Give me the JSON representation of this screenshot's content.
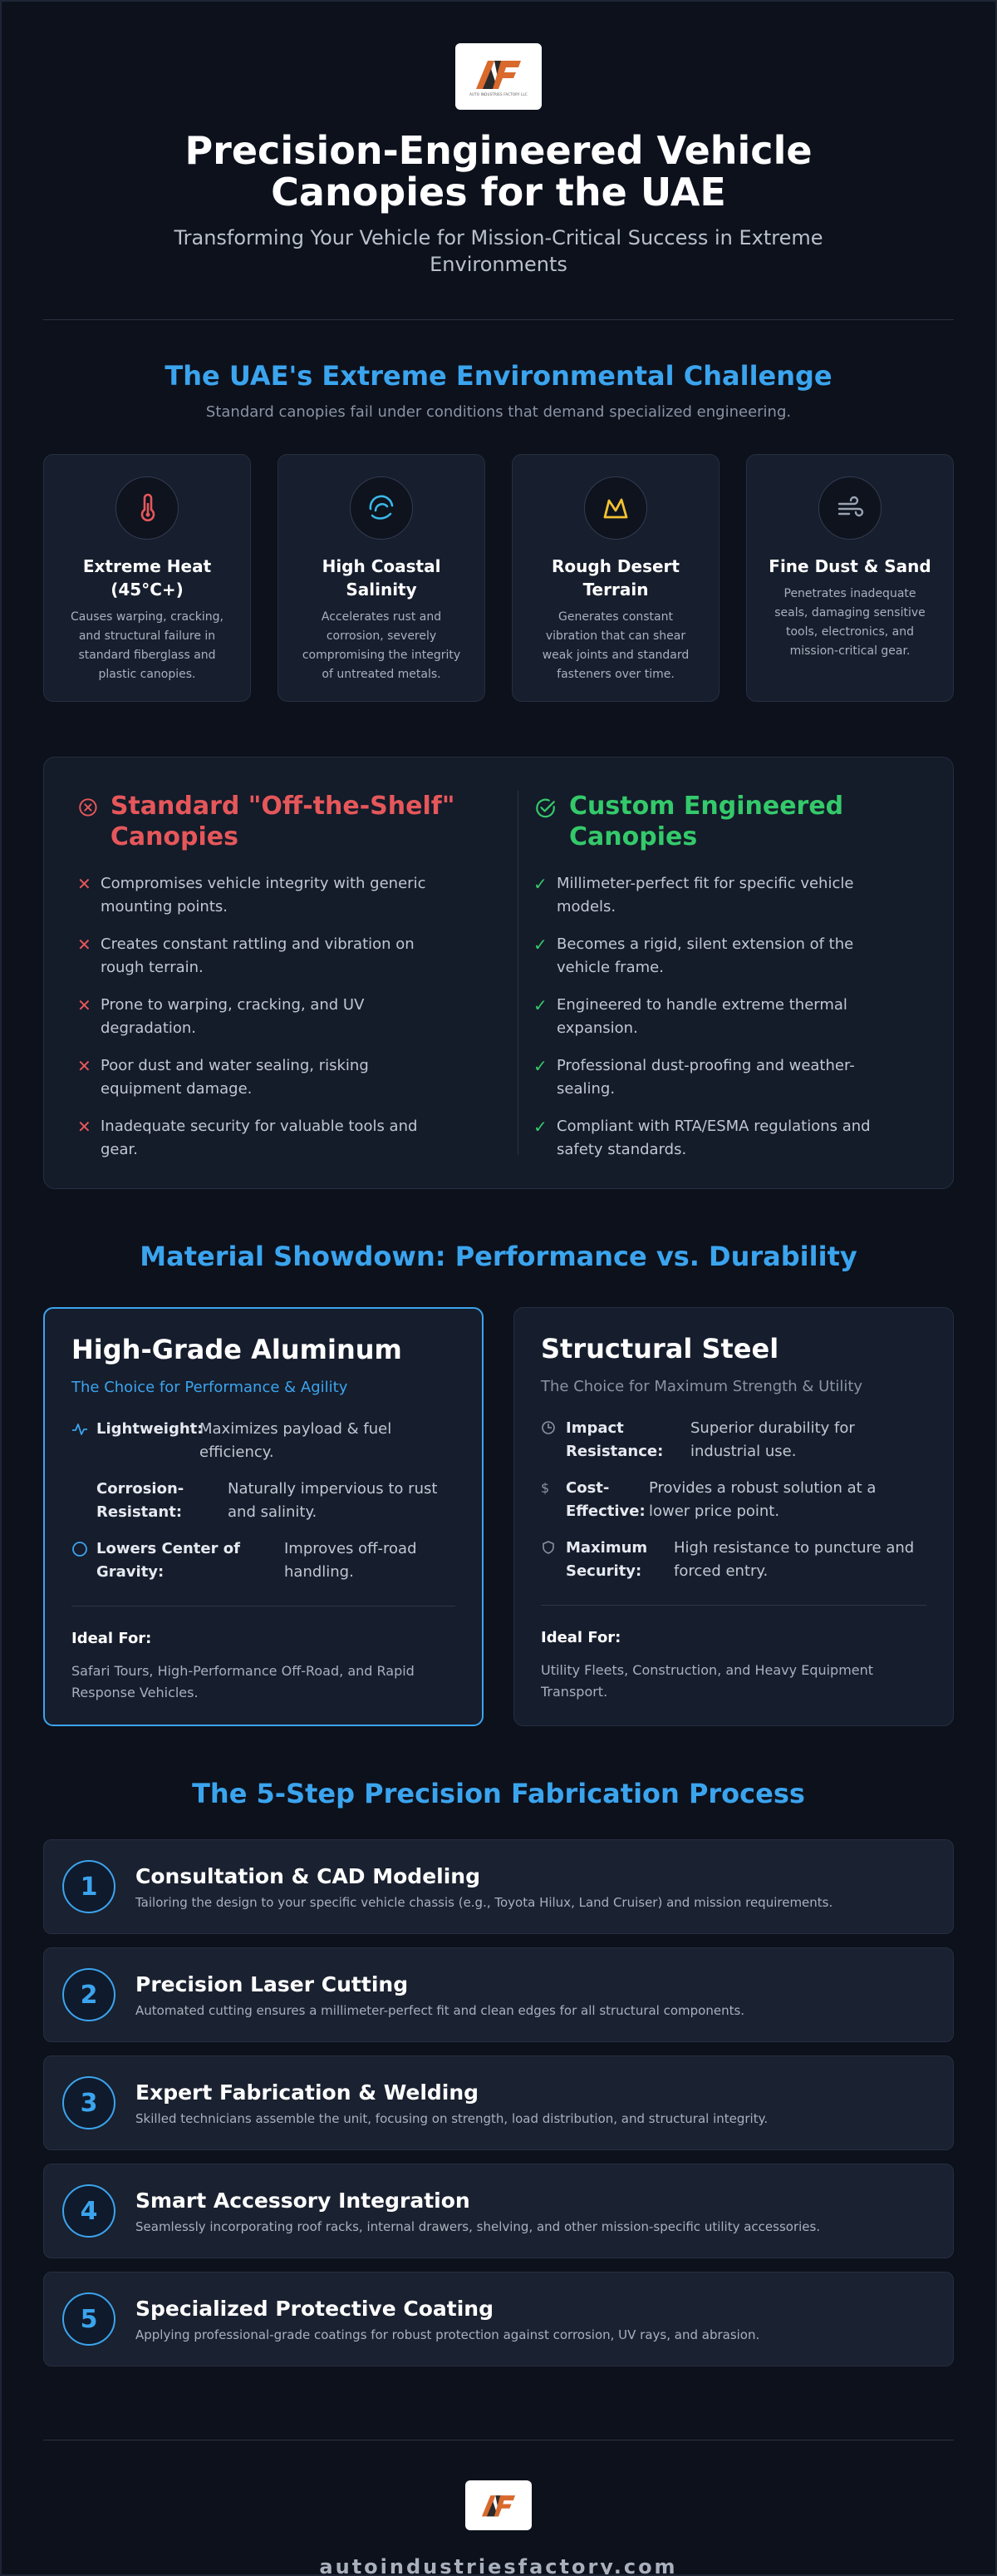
{
  "header": {
    "logo_text": "AUTO INDUSTRIES FACTORY LLC",
    "title": "Precision-Engineered Vehicle Canopies for the UAE",
    "subtitle": "Transforming Your Vehicle for Mission-Critical Success in Extreme Environments"
  },
  "challenge": {
    "title": "The UAE's Extreme Environmental Challenge",
    "subtitle": "Standard canopies fail under conditions that demand specialized engineering.",
    "cards": [
      {
        "icon": "thermometer-icon",
        "title": "Extreme Heat (45°C+)",
        "desc": "Causes warping, cracking, and structural failure in standard fiberglass and plastic canopies.",
        "color": "#e5575a"
      },
      {
        "icon": "wave-icon",
        "title": "High Coastal Salinity",
        "desc": "Accelerates rust and corrosion, severely compromising the integrity of untreated metals.",
        "color": "#3bb8e8"
      },
      {
        "icon": "mountain-icon",
        "title": "Rough Desert Terrain",
        "desc": "Generates constant vibration that can shear weak joints and standard fasteners over time.",
        "color": "#f2c230"
      },
      {
        "icon": "wind-icon",
        "title": "Fine Dust & Sand",
        "desc": "Penetrates inadequate seals, damaging sensitive tools, electronics, and mission-critical gear.",
        "color": "#9aa3b2"
      }
    ]
  },
  "compare": {
    "standard": {
      "title": "Standard \"Off-the-Shelf\" Canopies",
      "items": [
        "Compromises vehicle integrity with generic mounting points.",
        "Creates constant rattling and vibration on rough terrain.",
        "Prone to warping, cracking, and UV degradation.",
        "Poor dust and water sealing, risking equipment damage.",
        "Inadequate security for valuable tools and gear."
      ]
    },
    "custom": {
      "title": "Custom Engineered Canopies",
      "items": [
        "Millimeter-perfect fit for specific vehicle models.",
        "Becomes a rigid, silent extension of the vehicle frame.",
        "Engineered to handle extreme thermal expansion.",
        "Professional dust-proofing and weather-sealing.",
        "Compliant with RTA/ESMA regulations and safety standards."
      ]
    }
  },
  "materials": {
    "title": "Material Showdown: Performance vs. Durability",
    "aluminum": {
      "title": "High-Grade Aluminum",
      "subtitle": "The Choice for Performance & Agility",
      "features": [
        {
          "icon": "pulse-icon",
          "label": "Lightweight:",
          "value": "Maximizes payload & fuel efficiency."
        },
        {
          "icon": "",
          "label": "Corrosion-Resistant:",
          "value": "Naturally impervious to rust and salinity."
        },
        {
          "icon": "circle-icon",
          "label": "Lowers Center of Gravity:",
          "value": "Improves off-road handling."
        }
      ],
      "ideal_label": "Ideal For:",
      "ideal_value": "Safari Tours, High-Performance Off-Road, and Rapid Response Vehicles."
    },
    "steel": {
      "title": "Structural Steel",
      "subtitle": "The Choice for Maximum Strength & Utility",
      "features": [
        {
          "icon": "clock-icon",
          "label": "Impact Resistance:",
          "value": "Superior durability for industrial use."
        },
        {
          "icon": "dollar-icon",
          "label": "Cost-Effective:",
          "value": "Provides a robust solution at a lower price point."
        },
        {
          "icon": "shield-icon",
          "label": "Maximum Security:",
          "value": "High resistance to puncture and forced entry."
        }
      ],
      "ideal_label": "Ideal For:",
      "ideal_value": "Utility Fleets, Construction, and Heavy Equipment Transport."
    }
  },
  "process": {
    "title": "The 5-Step Precision Fabrication Process",
    "steps": [
      {
        "num": "1",
        "title": "Consultation & CAD Modeling",
        "desc": "Tailoring the design to your specific vehicle chassis (e.g., Toyota Hilux, Land Cruiser) and mission requirements."
      },
      {
        "num": "2",
        "title": "Precision Laser Cutting",
        "desc": "Automated cutting ensures a millimeter-perfect fit and clean edges for all structural components."
      },
      {
        "num": "3",
        "title": "Expert Fabrication & Welding",
        "desc": "Skilled technicians assemble the unit, focusing on strength, load distribution, and structural integrity."
      },
      {
        "num": "4",
        "title": "Smart Accessory Integration",
        "desc": "Seamlessly incorporating roof racks, internal drawers, shelving, and other mission-specific utility accessories."
      },
      {
        "num": "5",
        "title": "Specialized Protective Coating",
        "desc": "Applying professional-grade coatings for robust protection against corrosion, UV rays, and abrasion."
      }
    ]
  },
  "footer": {
    "url": "autoindustriesfactory.com"
  },
  "colors": {
    "accent": "#3ba4ee",
    "bad": "#e5575a",
    "good": "#34c96a",
    "background": "#0c111c",
    "card": "#171e2d"
  }
}
